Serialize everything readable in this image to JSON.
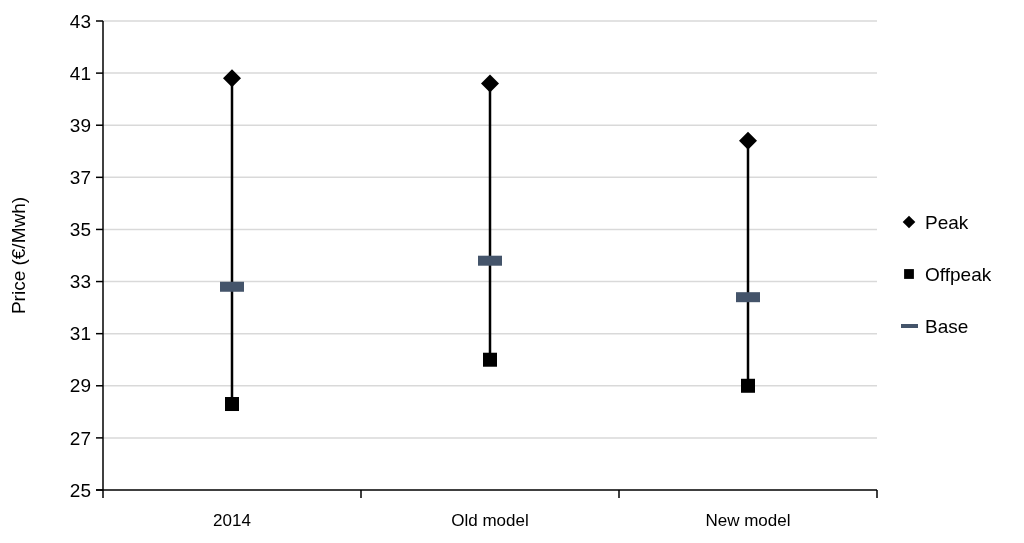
{
  "chart_data": {
    "type": "scatter",
    "ylabel": "Price (€/Mwh)",
    "categories": [
      "2014",
      "Old model",
      "New model"
    ],
    "ylim": [
      25,
      43
    ],
    "yticks": [
      25,
      27,
      29,
      31,
      33,
      35,
      37,
      39,
      41,
      43
    ],
    "grid": "y",
    "legend": "right",
    "series": [
      {
        "name": "Peak",
        "color": "#000000",
        "marker": "diamond",
        "values": [
          40.8,
          40.6,
          38.4
        ]
      },
      {
        "name": "Offpeak",
        "color": "#000000",
        "marker": "square",
        "values": [
          28.3,
          30.0,
          29.0
        ]
      },
      {
        "name": "Base",
        "color": "#44546a",
        "values": [
          32.8,
          33.8,
          32.4
        ]
      }
    ]
  }
}
